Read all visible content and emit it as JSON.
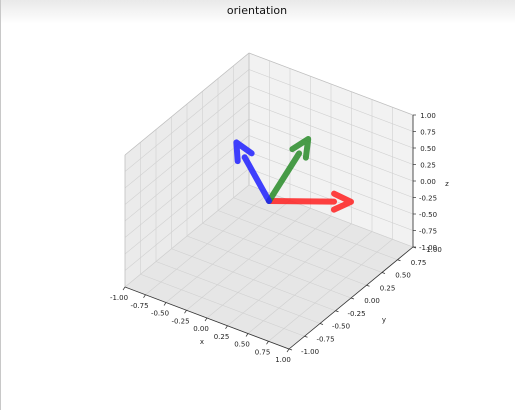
{
  "chart_data": {
    "type": "3d-quiver",
    "title": "orientation",
    "xlabel": "x",
    "ylabel": "y",
    "zlabel": "z",
    "xlim": [
      -1,
      1
    ],
    "ylim": [
      -1,
      1
    ],
    "zlim": [
      -1,
      1
    ],
    "grid": true,
    "origin": [
      0,
      0,
      0
    ],
    "vectors": [
      {
        "color": "#ff2020",
        "components": [
          0.66,
          0.45,
          -0.05
        ]
      },
      {
        "color": "#2a8c2a",
        "components": [
          0.1,
          0.5,
          0.6
        ]
      },
      {
        "color": "#2020ff",
        "components": [
          -0.7,
          0.4,
          0.25
        ]
      }
    ],
    "xticks": [
      "-1.00",
      "-0.75",
      "-0.50",
      "-0.25",
      "0.00",
      "0.25",
      "0.50",
      "0.75",
      "1.00"
    ],
    "yticks": [
      "-1.00",
      "-0.75",
      "-0.50",
      "-0.25",
      "0.00",
      "0.25",
      "0.50",
      "0.75",
      "1.00"
    ],
    "zticks": [
      "-1.00",
      "-0.75",
      "-0.50",
      "-0.25",
      "0.00",
      "0.25",
      "0.50",
      "0.75",
      "1.00"
    ]
  },
  "colors": {
    "pane_xz": "#f2f2f2",
    "pane_yz": "#ebebeb",
    "pane_floor": "#e6e6e6",
    "grid": "#d0d0d0"
  }
}
